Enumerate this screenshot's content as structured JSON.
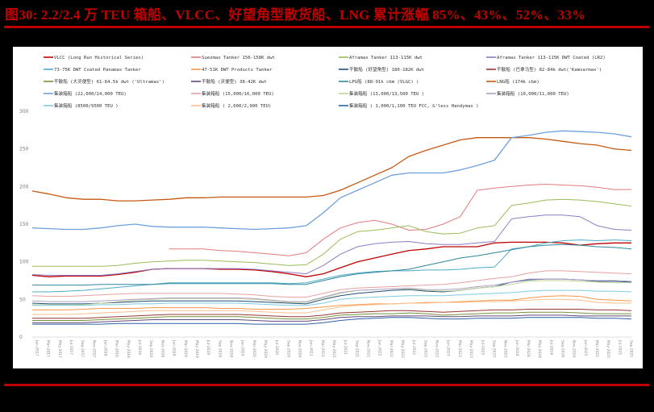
{
  "header": {
    "title": "图30:   2.2/2.4 万 TEU 箱船、VLCC、好望角型散货船、LNG 累计涨幅 85%、43%、52%、33%"
  },
  "colors": {
    "title": "#c00000",
    "rule": "#c00000",
    "background": "#000000",
    "panel": "#ffffff"
  },
  "chart_data": {
    "type": "line",
    "title": "",
    "xlabel": "",
    "ylabel": "",
    "ylim": [
      0,
      300
    ],
    "yticks": [
      0,
      50,
      100,
      150,
      200,
      250,
      300
    ],
    "grid": false,
    "legend_position": "top",
    "x_sampling": "quarterly (Jan-2017 .. Oct-2025)",
    "x": [
      "Jan-2017",
      "Apr-2017",
      "Jul-2017",
      "Oct-2017",
      "Jan-2018",
      "Apr-2018",
      "Jul-2018",
      "Oct-2018",
      "Jan-2019",
      "Apr-2019",
      "Jul-2019",
      "Oct-2019",
      "Jan-2020",
      "Apr-2020",
      "Jul-2020",
      "Oct-2020",
      "Jan-2021",
      "Apr-2021",
      "Jul-2021",
      "Oct-2021",
      "Jan-2022",
      "Apr-2022",
      "Jul-2022",
      "Oct-2022",
      "Jan-2023",
      "Apr-2023",
      "Jul-2023",
      "Oct-2023",
      "Jan-2024",
      "Apr-2024",
      "Jul-2024",
      "Oct-2024",
      "Jan-2025",
      "Apr-2025",
      "Jul-2025",
      "Oct-2025"
    ],
    "x_tick_labels": [
      "Jan-2017",
      "Mar-2017",
      "May-2017",
      "Jul-2017",
      "Sep-2017",
      "Nov-2017",
      "Jan-2018",
      "Mar-2018",
      "May-2018",
      "Jul-2018",
      "Sep-2018",
      "Nov-2018",
      "Jan-2019",
      "Mar-2019",
      "May-2019",
      "Jul-2019",
      "Sep-2019",
      "Nov-2019",
      "Jan-2020",
      "Mar-2020",
      "May-2020",
      "Jul-2020",
      "Sep-2020",
      "Nov-2020",
      "Jan-2021",
      "Mar-2021",
      "May-2021",
      "Jul-2021",
      "Sep-2021",
      "Nov-2021",
      "Jan-2022",
      "Mar-2022",
      "May-2022",
      "Jul-2022",
      "Sep-2022",
      "Nov-2022",
      "Jan-2023",
      "Mar-2023",
      "May-2023",
      "Jul-2023",
      "Sep-2023",
      "Nov-2023",
      "Jan-2024",
      "Mar-2024",
      "May-2024",
      "Jul-2024",
      "Sep-2024",
      "Nov-2024",
      "Jan-2025",
      "Mar-2025",
      "May-2025",
      "Jul-2025",
      "Sep-2025"
    ],
    "series": [
      {
        "name": "VLCC  (Long Run Historical Series)",
        "color": "#c00000",
        "width": 1.3,
        "values": [
          82,
          80,
          81,
          81,
          81,
          83,
          86,
          90,
          91,
          91,
          91,
          90,
          90,
          89,
          87,
          84,
          80,
          84,
          92,
          100,
          105,
          110,
          115,
          117,
          120,
          120,
          120,
          125,
          126,
          126,
          126,
          125,
          122,
          124,
          125,
          125
        ]
      },
      {
        "name": "Suezmax Tanker 156-158K dwt",
        "color": "#e07b7b",
        "width": 1,
        "values": [
          null,
          null,
          null,
          null,
          null,
          null,
          null,
          null,
          117,
          117,
          117,
          115,
          114,
          112,
          110,
          108,
          112,
          130,
          145,
          152,
          155,
          150,
          142,
          143,
          150,
          160,
          195,
          198,
          200,
          202,
          203,
          202,
          201,
          199,
          196,
          196
        ]
      },
      {
        "name": "Aframax Tanker 113-115K dwt",
        "color": "#9bbb59",
        "width": 1,
        "values": [
          94,
          94,
          94,
          94,
          94,
          95,
          98,
          100,
          101,
          102,
          102,
          101,
          100,
          99,
          97,
          95,
          96,
          110,
          130,
          140,
          142,
          145,
          148,
          140,
          137,
          138,
          145,
          148,
          175,
          178,
          182,
          183,
          182,
          180,
          177,
          174
        ]
      },
      {
        "name": "Aframax Tanker 113-115K DWT Coated (LR2)",
        "color": "#8e7cc3",
        "width": 1,
        "values": [
          83,
          82,
          82,
          82,
          82,
          84,
          87,
          90,
          91,
          91,
          91,
          91,
          91,
          90,
          88,
          86,
          84,
          95,
          110,
          120,
          124,
          126,
          127,
          124,
          123,
          123,
          125,
          127,
          157,
          160,
          162,
          162,
          160,
          148,
          143,
          142
        ]
      },
      {
        "name": "73-75K DWT Coated Panamax Tanker",
        "color": "#4bacc6",
        "width": 1,
        "values": [
          60,
          60,
          61,
          62,
          64,
          66,
          68,
          70,
          72,
          72,
          72,
          72,
          72,
          72,
          72,
          71,
          72,
          77,
          82,
          85,
          87,
          88,
          88,
          89,
          89,
          90,
          92,
          93,
          117,
          120,
          125,
          128,
          129,
          128,
          129,
          128
        ]
      },
      {
        "name": "47-51K DWT Products Tanker",
        "color": "#f79646",
        "width": 1,
        "values": [
          36,
          36,
          36,
          37,
          38,
          38,
          38,
          39,
          39,
          39,
          39,
          38,
          38,
          37,
          37,
          37,
          38,
          40,
          42,
          43,
          44,
          44,
          45,
          46,
          46,
          47,
          48,
          49,
          49,
          52,
          54,
          55,
          54,
          50,
          49,
          48
        ]
      },
      {
        "name": "干散船 (好望角型) 180-182K dwt",
        "color": "#1f4e79",
        "width": 1,
        "values": [
          45,
          44,
          44,
          44,
          45,
          46,
          47,
          48,
          48,
          48,
          48,
          48,
          48,
          47,
          46,
          45,
          44,
          50,
          55,
          58,
          60,
          62,
          63,
          61,
          60,
          62,
          65,
          67,
          73,
          76,
          77,
          77,
          76,
          74,
          74,
          73
        ]
      },
      {
        "name": "干散船 (巴拿马型) 82-84k dwt ('Kamsarmax')",
        "color": "#953735",
        "width": 1,
        "values": [
          25,
          25,
          25,
          25,
          26,
          27,
          28,
          29,
          30,
          30,
          30,
          30,
          30,
          29,
          28,
          27,
          27,
          29,
          32,
          33,
          34,
          35,
          35,
          34,
          33,
          34,
          35,
          36,
          36,
          37,
          37,
          37,
          37,
          36,
          36,
          35
        ]
      },
      {
        "name": "干散船 (大灵便型) 61-64.5k dwt ('Ultramax')",
        "color": "#76923c",
        "width": 1,
        "values": [
          22,
          22,
          22,
          22,
          23,
          24,
          25,
          26,
          27,
          27,
          27,
          27,
          27,
          26,
          25,
          24,
          24,
          26,
          29,
          30,
          31,
          31,
          32,
          31,
          29,
          30,
          31,
          32,
          32,
          33,
          33,
          33,
          32,
          31,
          31,
          31
        ]
      },
      {
        "name": "干散船 (灵便型) 38-42K dwt",
        "color": "#5f497a",
        "width": 1,
        "values": [
          19,
          19,
          19,
          19,
          20,
          21,
          22,
          23,
          23,
          23,
          23,
          23,
          23,
          22,
          21,
          21,
          21,
          23,
          26,
          27,
          27,
          28,
          28,
          28,
          27,
          27,
          28,
          28,
          28,
          29,
          29,
          29,
          28,
          28,
          28,
          28
        ]
      },
      {
        "name": "LPG船 (88-91k cbm (VLGC) )",
        "color": "#31859c",
        "width": 1,
        "values": [
          69,
          69,
          69,
          69,
          70,
          70,
          70,
          70,
          71,
          71,
          71,
          71,
          71,
          71,
          71,
          70,
          70,
          75,
          80,
          84,
          86,
          88,
          90,
          95,
          100,
          105,
          108,
          112,
          116,
          120,
          122,
          123,
          122,
          120,
          119,
          117
        ]
      },
      {
        "name": "LNG船 (174k cbm)",
        "color": "#c65911",
        "width": 1.3,
        "values": [
          194,
          190,
          185,
          183,
          183,
          181,
          181,
          182,
          183,
          185,
          185,
          186,
          186,
          186,
          186,
          186,
          186,
          188,
          195,
          205,
          215,
          225,
          240,
          248,
          255,
          262,
          265,
          265,
          265,
          265,
          263,
          260,
          257,
          255,
          250,
          248
        ]
      },
      {
        "name": "集装箱船  (22,000/24,000 TEU)",
        "color": "#6fa0dc",
        "width": 1.3,
        "values": [
          145,
          144,
          143,
          143,
          145,
          148,
          150,
          147,
          146,
          146,
          146,
          145,
          144,
          143,
          144,
          145,
          148,
          165,
          185,
          195,
          205,
          215,
          218,
          218,
          218,
          222,
          228,
          235,
          265,
          268,
          272,
          274,
          273,
          272,
          270,
          266
        ]
      },
      {
        "name": "集装箱船  (15,000/16,000 TEU)",
        "color": "#e6a0a0",
        "width": 1,
        "values": [
          55,
          54,
          54,
          55,
          56,
          57,
          58,
          58,
          58,
          58,
          58,
          58,
          57,
          56,
          54,
          53,
          53,
          58,
          63,
          65,
          66,
          67,
          68,
          69,
          70,
          72,
          75,
          78,
          80,
          85,
          88,
          88,
          87,
          86,
          85,
          84
        ]
      },
      {
        "name": "集装箱船 (13,000/13,500 TEU )",
        "color": "#c3d69b",
        "width": 1,
        "values": [
          43,
          43,
          43,
          43,
          45,
          47,
          49,
          50,
          51,
          51,
          51,
          51,
          51,
          50,
          48,
          46,
          46,
          52,
          58,
          62,
          63,
          64,
          64,
          62,
          61,
          62,
          65,
          67,
          70,
          74,
          75,
          75,
          74,
          73,
          72,
          72
        ]
      },
      {
        "name": "集装箱船 (10,000/11,000 TEU)",
        "color": "#b1a0c7",
        "width": 1,
        "values": [
          48,
          47,
          47,
          47,
          48,
          49,
          50,
          51,
          52,
          52,
          52,
          52,
          52,
          51,
          49,
          47,
          47,
          53,
          59,
          62,
          63,
          64,
          65,
          63,
          63,
          64,
          67,
          69,
          73,
          77,
          77,
          77,
          76,
          75,
          75,
          74
        ]
      },
      {
        "name": "集装箱船 (8500/9500 TEU )",
        "color": "#7ecbe0",
        "width": 1,
        "values": [
          42,
          42,
          42,
          42,
          43,
          43,
          44,
          44,
          45,
          45,
          45,
          45,
          45,
          44,
          43,
          42,
          42,
          45,
          50,
          52,
          53,
          54,
          55,
          55,
          55,
          56,
          57,
          58,
          59,
          61,
          62,
          62,
          62,
          61,
          61,
          60
        ]
      },
      {
        "name": "集装箱船 ( 2,600/2,900 TEU)",
        "color": "#fabf8f",
        "width": 1,
        "values": [
          30,
          30,
          30,
          31,
          32,
          33,
          34,
          35,
          35,
          35,
          35,
          35,
          35,
          34,
          33,
          32,
          32,
          36,
          40,
          42,
          43,
          44,
          45,
          45,
          46,
          46,
          47,
          47,
          48,
          49,
          50,
          50,
          49,
          46,
          45,
          45
        ]
      },
      {
        "name": "集装箱船 ( 1,000/1,100 TEU FCC, G'less Handymax )",
        "color": "#2e5fa3",
        "width": 1,
        "values": [
          17,
          17,
          17,
          17,
          17,
          18,
          18,
          18,
          18,
          18,
          18,
          18,
          18,
          17,
          17,
          17,
          17,
          19,
          22,
          24,
          25,
          26,
          26,
          25,
          24,
          24,
          25,
          25,
          25,
          26,
          26,
          26,
          26,
          25,
          25,
          24
        ]
      }
    ]
  },
  "legend": {
    "rows": [
      [
        "VLCC  (Long Run Historical Series)",
        "Suezmax Tanker 156-158K dwt",
        "Aframax Tanker 113-115K dwt",
        "Aframax Tanker 113-115K DWT Coated (LR2)"
      ],
      [
        "73-75K DWT Coated Panamax Tanker",
        "47-51K DWT Products Tanker",
        "干散船 (好望角型) 180-182K dwt",
        "干散船 (巴拿马型)  82-84k dwt('Kamsarmax')"
      ],
      [
        "干散船 (大灵便型) 61-64.5k dwt ('Ultramax')",
        "干散船 (灵便型) 38-42K dwt",
        "LPG船 (88-91k cbm (VLGC) )",
        "LNG船 (174k cbm)"
      ],
      [
        "集装箱船  (22,000/24,000 TEU)",
        "集装箱船  (15,000/16,000 TEU)",
        "集装箱船 (13,000/13,500 TEU )",
        "集装箱船 (10,000/11,000 TEU)"
      ],
      [
        "集装箱船 (8500/9500 TEU )",
        "集装箱船 ( 2,600/2,900 TEU)",
        "集装箱船 ( 1,000/1,100 TEU FCC, G'less Handymax )"
      ]
    ]
  }
}
